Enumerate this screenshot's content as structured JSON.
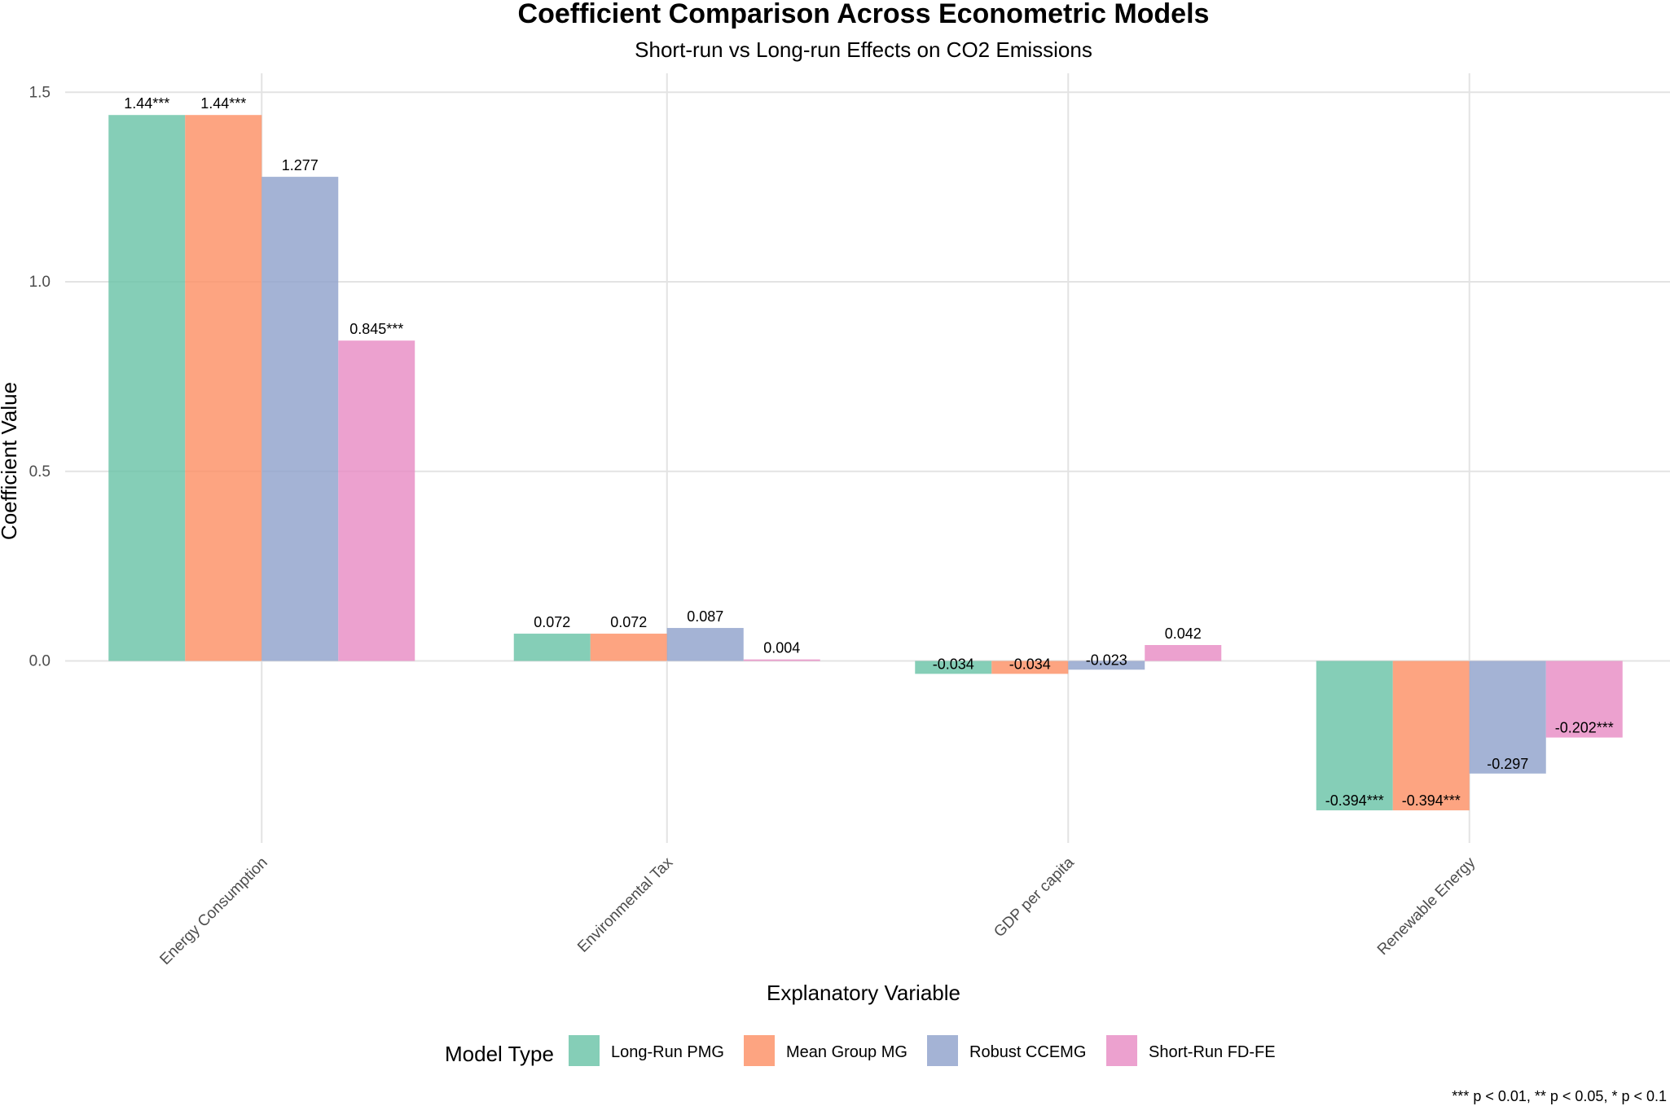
{
  "chart_data": {
    "type": "bar",
    "title": "Coefficient Comparison Across Econometric Models",
    "subtitle": "Short-run vs Long-run Effects on CO2 Emissions",
    "xlabel": "Explanatory Variable",
    "ylabel": "Coefficient Value",
    "ylim": [
      -0.48,
      1.55
    ],
    "yticks": [
      0.0,
      0.5,
      1.0,
      1.5
    ],
    "ytick_labels": [
      "0.0",
      "0.5",
      "1.0",
      "1.5"
    ],
    "grid": true,
    "legend_title": "Model Type",
    "legend_position": "bottom",
    "categories": [
      "Energy Consumption",
      "Environmental Tax",
      "GDP per capita",
      "Renewable Energy"
    ],
    "series": [
      {
        "name": "Long-Run PMG",
        "color": "#66C2A5",
        "values": [
          1.44,
          0.072,
          -0.034,
          -0.394
        ],
        "labels": [
          "1.44***",
          "0.072",
          "-0.034",
          "-0.394***"
        ]
      },
      {
        "name": "Mean Group MG",
        "color": "#FC8D62",
        "values": [
          1.44,
          0.072,
          -0.034,
          -0.394
        ],
        "labels": [
          "1.44***",
          "0.072",
          "-0.034",
          "-0.394***"
        ]
      },
      {
        "name": "Robust CCEMG",
        "color": "#8DA0CB",
        "values": [
          1.277,
          0.087,
          -0.023,
          -0.297
        ],
        "labels": [
          "1.277",
          "0.087",
          "-0.023",
          "-0.297"
        ]
      },
      {
        "name": "Short-Run FD-FE",
        "color": "#E78AC3",
        "values": [
          0.845,
          0.004,
          0.042,
          -0.202
        ],
        "labels": [
          "0.845***",
          "0.004",
          "0.042",
          "-0.202***"
        ]
      }
    ],
    "caption": "*** p < 0.01, ** p < 0.05, * p < 0.1"
  }
}
